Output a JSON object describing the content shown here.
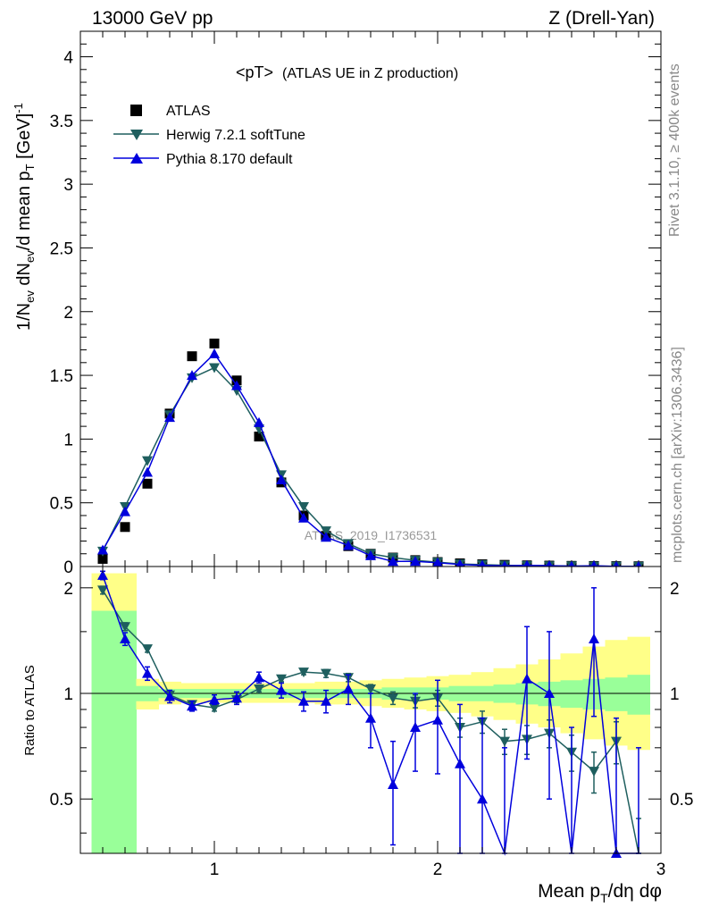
{
  "header": {
    "left": "13000 GeV pp",
    "right": "Z (Drell-Yan)"
  },
  "side_labels": {
    "rivet": "Rivet 3.1.10, ≥ 400k events",
    "mcplots": "mcplots.cern.ch [arXiv:1306.3436]"
  },
  "colors": {
    "data": "#000000",
    "herwig": "#1f5f5f",
    "pythia": "#0000dd",
    "band_inner": "#99ff99",
    "band_outer": "#ffff88"
  },
  "chart_data": [
    {
      "type": "scatter",
      "panel": "main",
      "title_main": "<pT>",
      "title_sub": "(ATLAS UE in Z production)",
      "ylabel": "1/N_ev dN_ev/d mean p_T [GeV]^-1",
      "ylabel_parts": [
        "1/N",
        "ev",
        " dN",
        "ev",
        "/d mean p",
        "T",
        " [GeV]",
        "-1"
      ],
      "xlim": [
        0.4,
        3.0
      ],
      "ylim": [
        0,
        4.2
      ],
      "yticks": [
        0,
        0.5,
        1,
        1.5,
        2,
        2.5,
        3,
        3.5,
        4
      ],
      "yticklabels": [
        "0",
        "0.5",
        "1",
        "1.5",
        "2",
        "2.5",
        "3",
        "3.5",
        "4"
      ],
      "watermark": "ATLAS_2019_I1736531",
      "legend": [
        "ATLAS",
        "Herwig 7.2.1 softTune",
        "Pythia 8.170 default"
      ],
      "legend_position": "top-left",
      "x": [
        0.5,
        0.6,
        0.7,
        0.8,
        0.9,
        1.0,
        1.1,
        1.2,
        1.3,
        1.4,
        1.5,
        1.6,
        1.7,
        1.8,
        1.9,
        2.0,
        2.1,
        2.2,
        2.3,
        2.4,
        2.5,
        2.6,
        2.7,
        2.8,
        2.9
      ],
      "series": [
        {
          "name": "ATLAS",
          "marker": "square",
          "values": [
            0.06,
            0.31,
            0.65,
            1.2,
            1.65,
            1.75,
            1.46,
            1.02,
            0.66,
            0.4,
            0.24,
            0.16,
            0.1,
            0.07,
            0.05,
            0.035,
            0.025,
            0.018,
            0.013,
            0.009,
            0.007,
            0.005,
            0.004,
            0.003,
            0.002
          ]
        },
        {
          "name": "Herwig 7.2.1 softTune",
          "marker": "triangle-down",
          "values": [
            0.12,
            0.47,
            0.83,
            1.19,
            1.48,
            1.56,
            1.38,
            1.08,
            0.72,
            0.47,
            0.28,
            0.18,
            0.1,
            0.07,
            0.048,
            0.034,
            0.02,
            0.015,
            0.01,
            0.007,
            0.005,
            0.004,
            0.003,
            0.002,
            0.001
          ]
        },
        {
          "name": "Pythia 8.170 default",
          "marker": "triangle-up",
          "values": [
            0.13,
            0.43,
            0.74,
            1.17,
            1.5,
            1.67,
            1.42,
            1.13,
            0.68,
            0.38,
            0.23,
            0.165,
            0.085,
            0.04,
            0.04,
            0.03,
            0.016,
            0.01,
            0.005,
            0.01,
            0.007,
            0.003,
            0.006,
            0.001,
            0.0005
          ]
        }
      ]
    },
    {
      "type": "line",
      "panel": "ratio",
      "ylabel": "Ratio to ATLAS",
      "xlabel_parts": [
        "Mean p",
        "T",
        "/dη dφ"
      ],
      "xlim": [
        0.4,
        3.0
      ],
      "ylim": [
        0.35,
        2.3
      ],
      "xticks": [
        1,
        2,
        3
      ],
      "xticklabels": [
        "1",
        "2",
        "3"
      ],
      "yticks": [
        0.5,
        1,
        2
      ],
      "yticklabels": [
        "0.5",
        "1",
        "2"
      ],
      "x": [
        0.5,
        0.6,
        0.7,
        0.8,
        0.9,
        1.0,
        1.1,
        1.2,
        1.3,
        1.4,
        1.5,
        1.6,
        1.7,
        1.8,
        1.9,
        2.0,
        2.1,
        2.2,
        2.3,
        2.4,
        2.5,
        2.6,
        2.7,
        2.8,
        2.9
      ],
      "band_edges": [
        0.45,
        0.55,
        0.65,
        0.75,
        0.85,
        0.95,
        1.05,
        1.15,
        1.25,
        1.35,
        1.45,
        1.55,
        1.65,
        1.75,
        1.85,
        1.95,
        2.05,
        2.15,
        2.25,
        2.35,
        2.45,
        2.55,
        2.65,
        2.75,
        2.85,
        2.95
      ],
      "band_inner": {
        "low": [
          0.3,
          0.3,
          0.95,
          0.97,
          0.97,
          0.97,
          0.97,
          0.97,
          0.97,
          0.97,
          0.97,
          0.97,
          0.97,
          0.96,
          0.96,
          0.96,
          0.95,
          0.95,
          0.94,
          0.93,
          0.92,
          0.91,
          0.9,
          0.89,
          0.87
        ],
        "high": [
          1.72,
          1.72,
          1.05,
          1.03,
          1.03,
          1.03,
          1.03,
          1.03,
          1.03,
          1.03,
          1.03,
          1.03,
          1.03,
          1.04,
          1.04,
          1.04,
          1.05,
          1.05,
          1.06,
          1.07,
          1.08,
          1.09,
          1.1,
          1.11,
          1.13
        ]
      },
      "band_outer": {
        "low": [
          0.3,
          0.8,
          0.9,
          0.93,
          0.94,
          0.94,
          0.94,
          0.94,
          0.94,
          0.94,
          0.93,
          0.93,
          0.92,
          0.91,
          0.9,
          0.89,
          0.88,
          0.86,
          0.84,
          0.82,
          0.8,
          0.77,
          0.74,
          0.71,
          0.69
        ],
        "high": [
          2.2,
          2.2,
          1.1,
          1.08,
          1.07,
          1.07,
          1.07,
          1.07,
          1.07,
          1.07,
          1.08,
          1.08,
          1.09,
          1.1,
          1.11,
          1.12,
          1.13,
          1.15,
          1.18,
          1.21,
          1.25,
          1.3,
          1.36,
          1.42,
          1.45
        ]
      },
      "series": [
        {
          "name": "Herwig 7.2.1 softTune",
          "marker": "triangle-down",
          "values": [
            1.97,
            1.55,
            1.34,
            0.99,
            0.93,
            0.91,
            0.96,
            1.03,
            1.1,
            1.15,
            1.14,
            1.11,
            1.03,
            0.97,
            0.95,
            0.97,
            0.8,
            0.83,
            0.73,
            0.74,
            0.77,
            0.68,
            0.6,
            0.73,
            0.34
          ],
          "errors": [
            0.05,
            0.04,
            0.03,
            0.03,
            0.02,
            0.02,
            0.02,
            0.02,
            0.02,
            0.02,
            0.03,
            0.03,
            0.03,
            0.04,
            0.04,
            0.05,
            0.05,
            0.06,
            0.06,
            0.07,
            0.07,
            0.08,
            0.08,
            0.1,
            0.1
          ]
        },
        {
          "name": "Pythia 8.170 default",
          "marker": "triangle-up",
          "values": [
            2.17,
            1.43,
            1.14,
            0.98,
            0.92,
            0.96,
            0.97,
            1.11,
            1.02,
            0.95,
            0.95,
            1.03,
            0.85,
            0.55,
            0.8,
            0.84,
            0.63,
            0.5,
            0.3,
            1.1,
            1.0,
            0.3,
            1.43,
            0.35,
            0.2
          ],
          "errors": [
            0.06,
            0.06,
            0.05,
            0.04,
            0.03,
            0.03,
            0.04,
            0.04,
            0.05,
            0.06,
            0.07,
            0.1,
            0.15,
            0.18,
            0.2,
            0.25,
            0.3,
            0.35,
            0.4,
            0.45,
            0.5,
            0.5,
            0.57,
            0.5,
            0.5
          ]
        }
      ]
    }
  ]
}
